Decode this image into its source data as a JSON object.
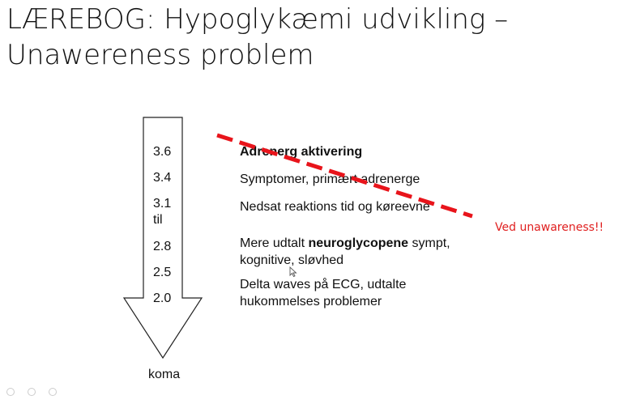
{
  "slide": {
    "title_line1": "LÆREBOG: Hypoglykæmi udvikling –",
    "title_line2": "Unawereness problem",
    "glucose_levels": [
      "3.6",
      "3.4",
      "3.1",
      "til",
      "2.8",
      "2.5",
      "2.0"
    ],
    "arrow_end_label": "koma",
    "descriptions": {
      "adrenerg": "Adrenerg aktivering",
      "symptomer": "Symptomer, primært adrenerge",
      "nedsat": "Nedsat reaktions tid og køreevne",
      "mere_prefix": "Mere udtalt ",
      "mere_bold": "neuroglycopene",
      "mere_suffix": " sympt,",
      "mere_line2": "kognitive, sløvhed",
      "delta_line1": "Delta waves på ECG, udtalte",
      "delta_line2": "hukommelses problemer"
    },
    "annotation": "Ved unawareness!!",
    "colors": {
      "annotation": "#e02020",
      "dashed_line": "#e8141b"
    },
    "icons": [
      "down-arrow-icon",
      "cursor-icon"
    ]
  }
}
